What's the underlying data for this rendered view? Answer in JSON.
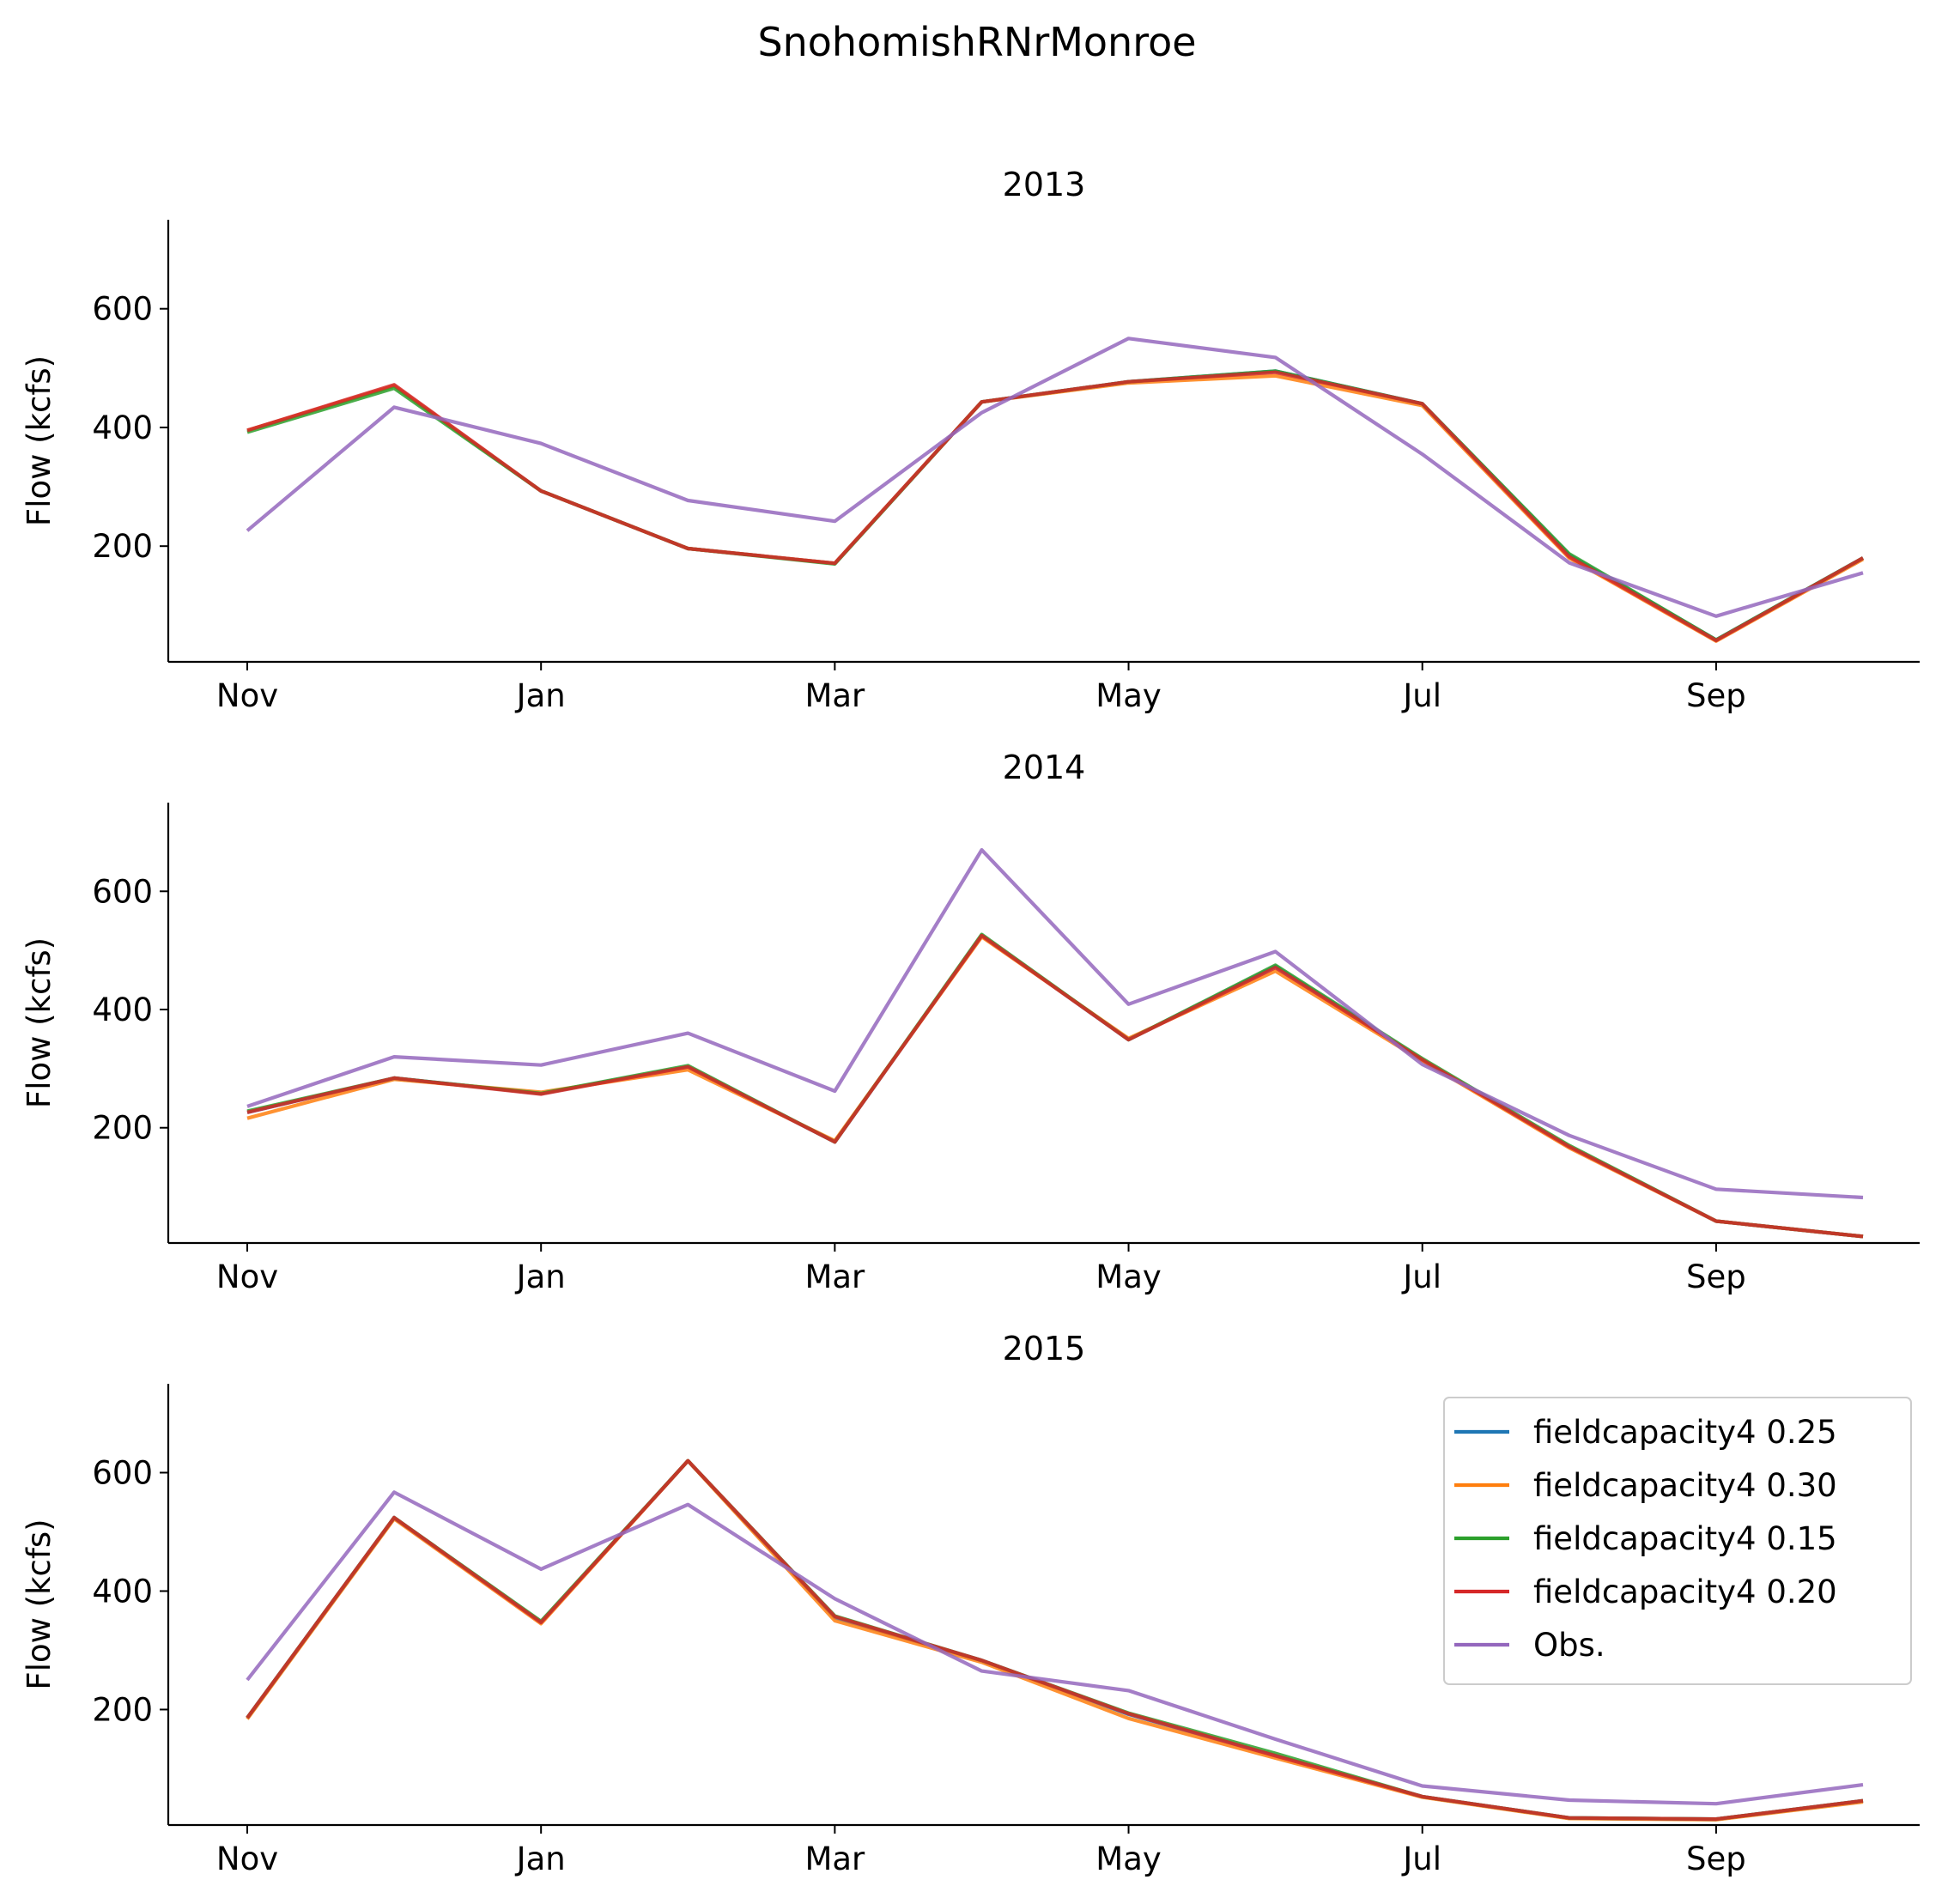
{
  "figure": {
    "title": "SnohomishRNrMonroe"
  },
  "chart_data": [
    {
      "type": "line",
      "title": "2013",
      "ylabel": "Flow (kcfs)",
      "ylim": [
        5,
        750
      ],
      "yticks": [
        200,
        400,
        600
      ],
      "x": [
        1,
        2,
        3,
        4,
        5,
        6,
        7,
        8,
        9,
        10,
        11,
        12
      ],
      "xticks": [
        1,
        3,
        5,
        7,
        9,
        11
      ],
      "xtick_labels": [
        "Nov",
        "Jan",
        "Mar",
        "May",
        "Jul",
        "Sep"
      ],
      "series": [
        {
          "name": "fieldcapacity4 0.25",
          "color": "#1f77b4",
          "values": [
            395,
            470,
            293,
            196,
            171,
            443,
            477,
            495,
            440,
            185,
            42,
            180
          ]
        },
        {
          "name": "fieldcapacity4 0.30",
          "color": "#ff7f0e",
          "values": [
            395,
            470,
            293,
            196,
            171,
            443,
            475,
            487,
            437,
            180,
            40,
            178
          ]
        },
        {
          "name": "fieldcapacity4 0.15",
          "color": "#2ca02c",
          "values": [
            392,
            466,
            293,
            196,
            170,
            443,
            477,
            495,
            440,
            187,
            42,
            180
          ]
        },
        {
          "name": "fieldcapacity4 0.20",
          "color": "#d62728",
          "values": [
            395,
            472,
            293,
            196,
            171,
            443,
            477,
            493,
            440,
            182,
            41,
            180
          ]
        },
        {
          "name": "Obs.",
          "color": "#9467bd",
          "values": [
            226,
            434,
            373,
            277,
            242,
            425,
            550,
            518,
            355,
            172,
            82,
            155
          ]
        }
      ]
    },
    {
      "type": "line",
      "title": "2014",
      "ylabel": "Flow (kcfs)",
      "ylim": [
        5,
        750
      ],
      "yticks": [
        200,
        400,
        600
      ],
      "x": [
        1,
        2,
        3,
        4,
        5,
        6,
        7,
        8,
        9,
        10,
        11,
        12
      ],
      "xticks": [
        1,
        3,
        5,
        7,
        9,
        11
      ],
      "xtick_labels": [
        "Nov",
        "Jan",
        "Mar",
        "May",
        "Jul",
        "Sep"
      ],
      "series": [
        {
          "name": "fieldcapacity4 0.25",
          "color": "#1f77b4",
          "values": [
            226,
            284,
            258,
            303,
            176,
            525,
            349,
            473,
            315,
            168,
            42,
            16
          ]
        },
        {
          "name": "fieldcapacity4 0.30",
          "color": "#ff7f0e",
          "values": [
            216,
            282,
            260,
            298,
            178,
            523,
            351,
            465,
            313,
            166,
            42,
            16
          ]
        },
        {
          "name": "fieldcapacity4 0.15",
          "color": "#2ca02c",
          "values": [
            228,
            284,
            258,
            305,
            176,
            527,
            349,
            475,
            317,
            170,
            42,
            16
          ]
        },
        {
          "name": "fieldcapacity4 0.20",
          "color": "#d62728",
          "values": [
            226,
            284,
            257,
            303,
            176,
            525,
            349,
            471,
            315,
            168,
            42,
            16
          ]
        },
        {
          "name": "Obs.",
          "color": "#9467bd",
          "values": [
            236,
            320,
            306,
            360,
            262,
            670,
            409,
            498,
            307,
            187,
            96,
            82
          ]
        }
      ]
    },
    {
      "type": "line",
      "title": "2015",
      "ylabel": "Flow (kcfs)",
      "ylim": [
        5,
        750
      ],
      "yticks": [
        200,
        400,
        600
      ],
      "x": [
        1,
        2,
        3,
        4,
        5,
        6,
        7,
        8,
        9,
        10,
        11,
        12
      ],
      "xticks": [
        1,
        3,
        5,
        7,
        9,
        11
      ],
      "xtick_labels": [
        "Nov",
        "Jan",
        "Mar",
        "May",
        "Jul",
        "Sep"
      ],
      "legend": {
        "placement": "upper right"
      },
      "series": [
        {
          "name": "fieldcapacity4 0.25",
          "color": "#1f77b4",
          "values": [
            186,
            524,
            347,
            620,
            355,
            283,
            192,
            122,
            53,
            17,
            15,
            46
          ]
        },
        {
          "name": "fieldcapacity4 0.30",
          "color": "#ff7f0e",
          "values": [
            184,
            522,
            345,
            620,
            350,
            280,
            185,
            118,
            52,
            16,
            14,
            44
          ]
        },
        {
          "name": "fieldcapacity4 0.15",
          "color": "#2ca02c",
          "values": [
            186,
            524,
            349,
            620,
            358,
            283,
            194,
            126,
            53,
            17,
            15,
            46
          ]
        },
        {
          "name": "fieldcapacity4 0.20",
          "color": "#d62728",
          "values": [
            186,
            524,
            347,
            620,
            357,
            283,
            193,
            122,
            53,
            17,
            15,
            46
          ]
        },
        {
          "name": "Obs.",
          "color": "#9467bd",
          "values": [
            250,
            567,
            437,
            546,
            387,
            265,
            232,
            150,
            71,
            47,
            41,
            73
          ]
        }
      ]
    }
  ]
}
